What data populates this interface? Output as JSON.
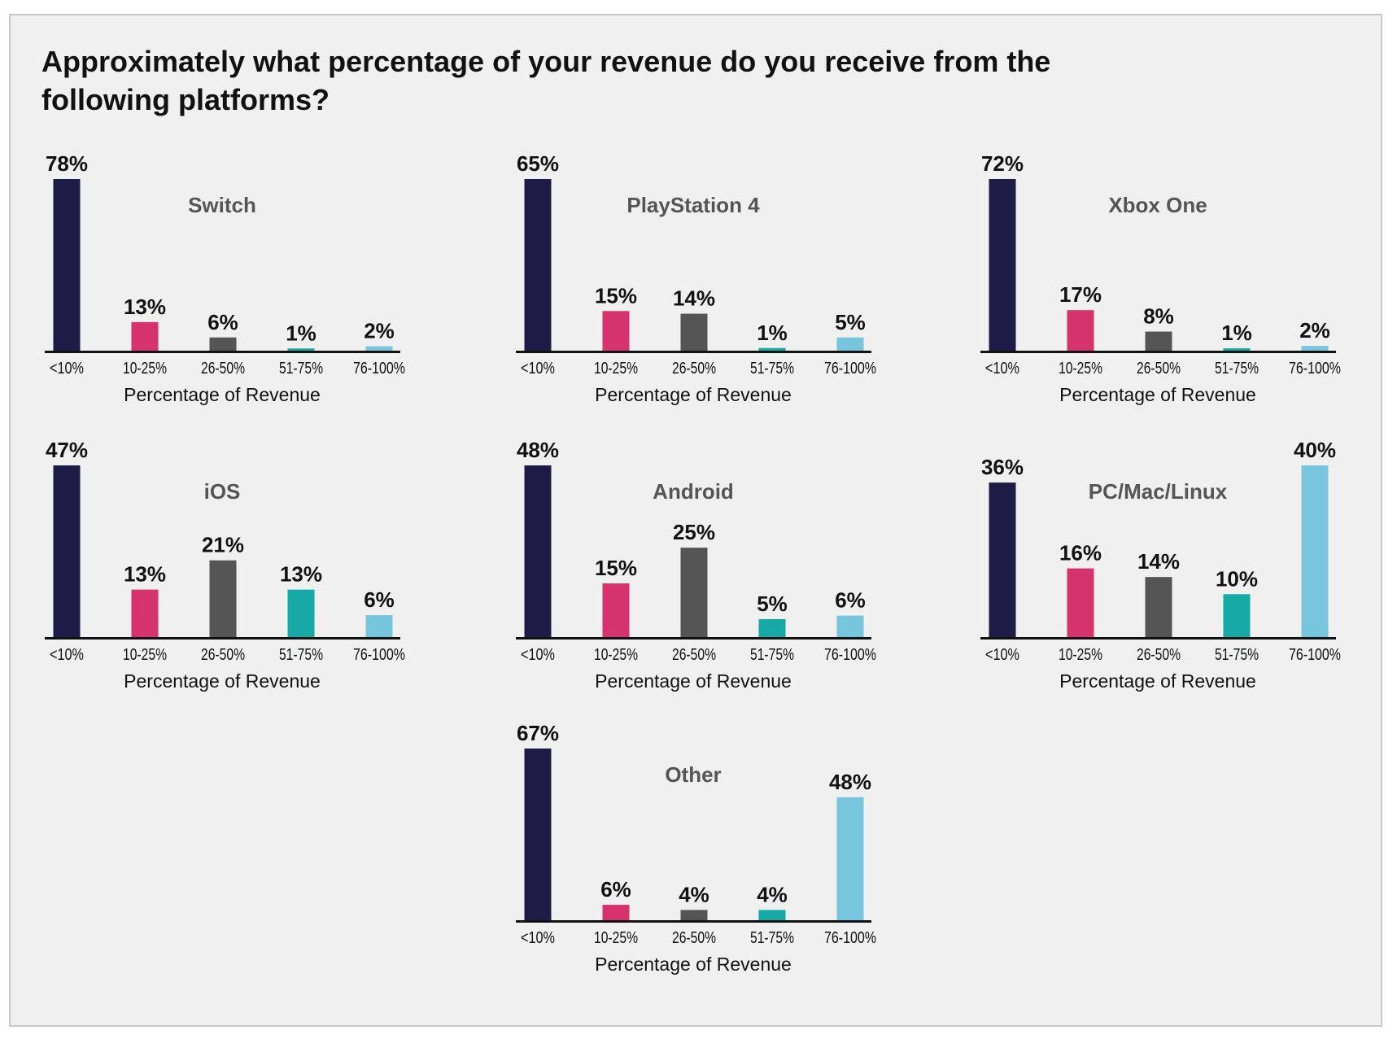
{
  "chart_data": {
    "type": "bar",
    "title": "Approximately what percentage of your revenue do you receive from the following platforms?",
    "categories": [
      "<10%",
      "10-25%",
      "26-50%",
      "51-75%",
      "76-100%"
    ],
    "xlabel": "Percentage of Revenue",
    "ylabel": "",
    "colors": [
      "#1e1c47",
      "#d6336c",
      "#555555",
      "#17a9a5",
      "#78c6de"
    ],
    "grid": false,
    "panels": [
      {
        "name": "Switch",
        "values": [
          78,
          13,
          6,
          1,
          2
        ]
      },
      {
        "name": "PlayStation 4",
        "values": [
          65,
          15,
          14,
          1,
          5
        ]
      },
      {
        "name": "Xbox One",
        "values": [
          72,
          17,
          8,
          1,
          2
        ]
      },
      {
        "name": "iOS",
        "values": [
          47,
          13,
          21,
          13,
          6
        ]
      },
      {
        "name": "Android",
        "values": [
          48,
          15,
          25,
          5,
          6
        ]
      },
      {
        "name": "PC/Mac/Linux",
        "values": [
          36,
          16,
          14,
          10,
          40
        ]
      },
      {
        "name": "Other",
        "values": [
          67,
          6,
          4,
          4,
          48
        ]
      }
    ]
  }
}
